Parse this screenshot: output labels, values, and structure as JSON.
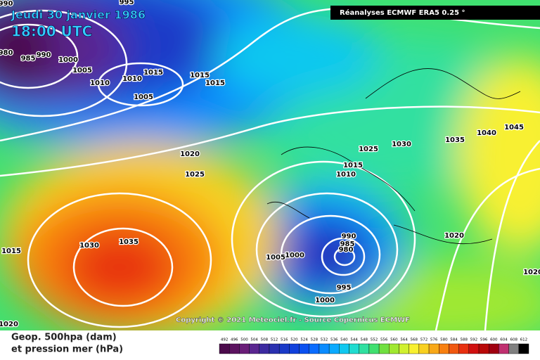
{
  "header": {
    "date": "Jeudi 30 janvier 1986",
    "time": "18:00 UTC",
    "source": "Réanalyses ECMWF ERA5 0.25 °"
  },
  "copyright": "Copyright © 2021 Meteociel.fr - Source Copernicus ECMWF",
  "legend": {
    "line1": "Geop. 500hpa (dam)",
    "line2": "et pression mer (hPa)",
    "labels": [
      492,
      496,
      500,
      504,
      508,
      512,
      516,
      520,
      524,
      528,
      532,
      536,
      540,
      544,
      548,
      552,
      556,
      560,
      564,
      568,
      572,
      576,
      580,
      584,
      588,
      592,
      596,
      600,
      604,
      608,
      612
    ],
    "colors": [
      "#4b0a4b",
      "#5c1360",
      "#6a1d78",
      "#5a2690",
      "#3c2aa0",
      "#2a30b0",
      "#1a3ac8",
      "#1040dc",
      "#0a50f0",
      "#0a6cff",
      "#0a8cff",
      "#0aaaff",
      "#10c8f0",
      "#20dcd0",
      "#30e0a0",
      "#40e070",
      "#70e040",
      "#a0e830",
      "#d0f030",
      "#f8f030",
      "#f8d020",
      "#f8a818",
      "#f88010",
      "#f05810",
      "#e83010",
      "#d01010",
      "#b80808",
      "#a00010",
      "#c03070",
      "#808080",
      "#000000"
    ]
  },
  "isobars": [
    990,
    995,
    980,
    985,
    990,
    1000,
    1005,
    1010,
    1015,
    1010,
    1005,
    1015,
    1015,
    1020,
    1025,
    1025,
    1030,
    1035,
    1040,
    1045,
    1015,
    1010,
    1030,
    1035,
    1015,
    1020,
    1005,
    1000,
    990,
    985,
    980,
    995,
    1000,
    1020,
    1020
  ]
}
